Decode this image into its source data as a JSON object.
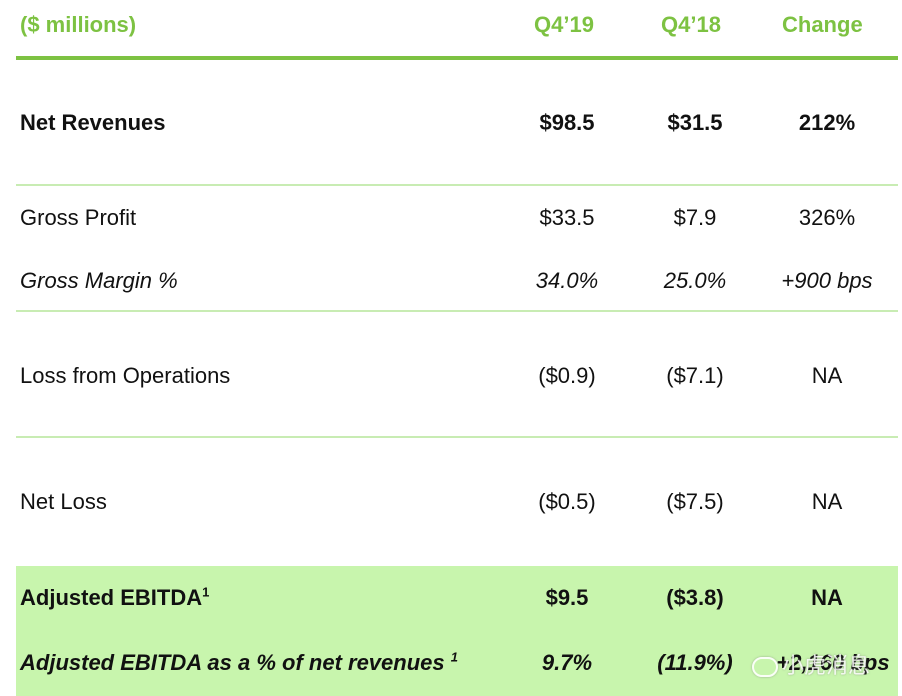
{
  "header": {
    "units": "($ millions)",
    "col1": "Q4’19",
    "col2": "Q4’18",
    "col3": "Change"
  },
  "rows": [
    {
      "label": "Net Revenues",
      "q4_19": "$98.5",
      "q4_18": "$31.5",
      "change": "212%"
    },
    {
      "label": "Gross Profit",
      "q4_19": "$33.5",
      "q4_18": "$7.9",
      "change": "326%"
    },
    {
      "label": "Gross Margin %",
      "q4_19": "34.0%",
      "q4_18": "25.0%",
      "change": "+900 bps"
    },
    {
      "label": "Loss from Operations",
      "q4_19": "($0.9)",
      "q4_18": "($7.1)",
      "change": "NA"
    },
    {
      "label": "Net Loss",
      "q4_19": "($0.5)",
      "q4_18": "($7.5)",
      "change": "NA"
    },
    {
      "label": "Adjusted EBITDA",
      "footnote": "1",
      "q4_19": "$9.5",
      "q4_18": "($3.8)",
      "change": "NA"
    },
    {
      "label": "Adjusted EBITDA as a % of net revenues",
      "footnote": "1",
      "q4_19": "9.7%",
      "q4_18": "(11.9%)",
      "change": "+2,160 bps"
    }
  ],
  "watermark": "小虎消息",
  "colors": {
    "accent": "#7dc242",
    "divider": "#c8ecb3",
    "highlight": "#c8f5ad"
  }
}
